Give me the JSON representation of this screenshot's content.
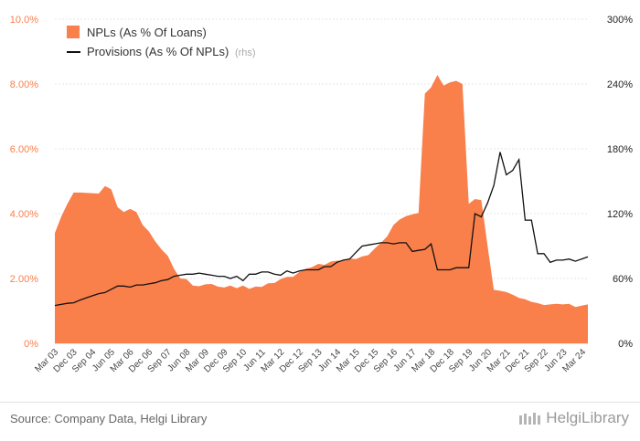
{
  "source": "Source: Company Data, Helgi Library",
  "brand": "HelgiLibrary",
  "chart_data": {
    "type": "area+line",
    "left_ylim": [
      0,
      10
    ],
    "right_ylim": [
      0,
      300
    ],
    "left_ticks": [
      "0%",
      "2.00%",
      "4.00%",
      "6.00%",
      "8.00%",
      "10.0%"
    ],
    "right_ticks": [
      "0%",
      "60%",
      "120%",
      "180%",
      "240%",
      "300%"
    ],
    "x_labels": [
      "Mar 03",
      "Dec 03",
      "Sep 04",
      "Jun 05",
      "Mar 06",
      "Dec 06",
      "Sep 07",
      "Jun 08",
      "Mar 09",
      "Dec 09",
      "Sep 10",
      "Jun 11",
      "Mar 12",
      "Dec 12",
      "Sep 13",
      "Jun 14",
      "Mar 15",
      "Dec 15",
      "Sep 16",
      "Jun 17",
      "Mar 18",
      "Dec 18",
      "Sep 19",
      "Jun 20",
      "Mar 21",
      "Dec 21",
      "Sep 22",
      "Jun 23",
      "Mar 24"
    ],
    "grid": true,
    "legend_position": "top-left",
    "series": [
      {
        "name": "NPLs (As % Of Loans)",
        "axis": "left",
        "chart": "area",
        "color": "#f97f4b",
        "values": [
          3.4,
          3.9,
          4.3,
          4.65,
          4.65,
          4.64,
          4.63,
          4.62,
          4.85,
          4.75,
          4.2,
          4.05,
          4.15,
          4.05,
          3.65,
          3.45,
          3.15,
          2.9,
          2.7,
          2.3,
          2.0,
          1.98,
          1.78,
          1.76,
          1.82,
          1.83,
          1.75,
          1.72,
          1.78,
          1.7,
          1.78,
          1.68,
          1.75,
          1.74,
          1.85,
          1.86,
          1.98,
          2.05,
          2.05,
          2.2,
          2.3,
          2.35,
          2.45,
          2.42,
          2.52,
          2.55,
          2.55,
          2.62,
          2.6,
          2.68,
          2.72,
          2.92,
          3.1,
          3.3,
          3.65,
          3.82,
          3.92,
          3.98,
          4.02,
          7.7,
          7.9,
          8.28,
          7.95,
          8.05,
          8.1,
          8.0,
          4.3,
          4.45,
          4.42,
          3.0,
          1.65,
          1.62,
          1.58,
          1.5,
          1.4,
          1.36,
          1.28,
          1.24,
          1.18,
          1.2,
          1.22,
          1.2,
          1.22,
          1.12,
          1.16,
          1.2
        ]
      },
      {
        "name": "Provisions (As % Of NPLs)",
        "name_suffix": "(rhs)",
        "axis": "right",
        "chart": "line",
        "color": "#111111",
        "values": [
          35,
          36,
          37,
          37.5,
          40,
          42,
          44,
          46,
          47,
          50,
          53,
          53,
          52,
          54,
          54,
          55,
          56,
          58,
          59,
          62,
          63,
          64,
          64,
          65,
          64,
          63,
          62,
          62,
          60,
          62,
          58,
          64,
          64,
          66,
          66,
          64,
          63,
          67,
          65,
          67,
          68,
          68,
          68,
          71,
          71,
          75,
          77,
          78,
          84,
          90,
          91,
          92,
          93,
          93,
          92,
          93,
          93,
          85,
          86,
          87,
          92,
          68,
          68,
          68,
          70,
          70,
          70,
          120,
          117,
          130,
          146,
          177,
          156,
          160,
          170,
          114,
          114,
          83,
          83,
          75,
          77,
          77,
          78,
          76,
          78,
          80
        ]
      }
    ]
  }
}
